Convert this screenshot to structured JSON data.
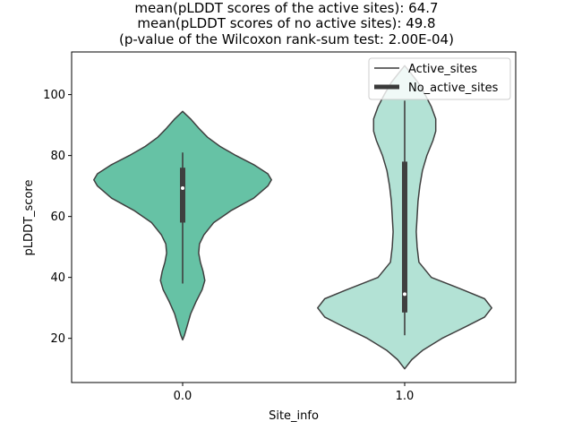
{
  "chart_data": {
    "type": "violin",
    "title_lines": [
      "mean(pLDDT scores of the active sites): 64.7",
      "mean(pLDDT scores of no active sites): 49.8",
      "(p-value of the Wilcoxon rank-sum test: 2.00E-04)"
    ],
    "xlabel": "Site_info",
    "ylabel": "pLDDT_score",
    "categories": [
      "0.0",
      "1.0"
    ],
    "ylim": [
      5.5,
      114
    ],
    "yticks": [
      20,
      40,
      60,
      80,
      100
    ],
    "legend": {
      "placement": "top-right",
      "entries": [
        {
          "label": "Active_sites",
          "style": "thin-line"
        },
        {
          "label": "No_active_sites",
          "style": "thick-line"
        }
      ]
    },
    "series": [
      {
        "category": "0.0",
        "color": "#66c2a5",
        "median": 69.3,
        "q1": 58,
        "q3": 76,
        "whisker_low": 38,
        "whisker_high": 81,
        "density": [
          [
            19.5,
            0.0
          ],
          [
            21,
            0.02
          ],
          [
            24,
            0.05
          ],
          [
            28,
            0.09
          ],
          [
            32,
            0.15
          ],
          [
            36,
            0.22
          ],
          [
            39,
            0.25
          ],
          [
            42,
            0.23
          ],
          [
            45,
            0.2
          ],
          [
            48,
            0.18
          ],
          [
            51,
            0.19
          ],
          [
            54,
            0.24
          ],
          [
            58,
            0.35
          ],
          [
            62,
            0.55
          ],
          [
            66,
            0.8
          ],
          [
            70,
            0.96
          ],
          [
            72,
            1.0
          ],
          [
            74,
            0.96
          ],
          [
            77,
            0.8
          ],
          [
            80,
            0.6
          ],
          [
            83,
            0.42
          ],
          [
            86,
            0.28
          ],
          [
            89,
            0.18
          ],
          [
            92,
            0.09
          ],
          [
            94.5,
            0.0
          ]
        ]
      },
      {
        "category": "1.0",
        "color": "#b3e2d5",
        "median": 34.5,
        "q1": 28.5,
        "q3": 78,
        "whisker_low": 21,
        "whisker_high": 98,
        "density": [
          [
            10,
            0.0
          ],
          [
            13,
            0.08
          ],
          [
            16,
            0.2
          ],
          [
            20,
            0.42
          ],
          [
            24,
            0.7
          ],
          [
            27,
            0.9
          ],
          [
            30,
            0.98
          ],
          [
            33,
            0.9
          ],
          [
            36,
            0.65
          ],
          [
            40,
            0.3
          ],
          [
            45,
            0.16
          ],
          [
            50,
            0.14
          ],
          [
            55,
            0.13
          ],
          [
            60,
            0.14
          ],
          [
            65,
            0.15
          ],
          [
            70,
            0.17
          ],
          [
            75,
            0.2
          ],
          [
            80,
            0.25
          ],
          [
            85,
            0.32
          ],
          [
            88,
            0.35
          ],
          [
            92,
            0.35
          ],
          [
            96,
            0.3
          ],
          [
            100,
            0.23
          ],
          [
            104,
            0.15
          ],
          [
            107,
            0.07
          ],
          [
            109.5,
            0.0
          ]
        ]
      }
    ]
  }
}
